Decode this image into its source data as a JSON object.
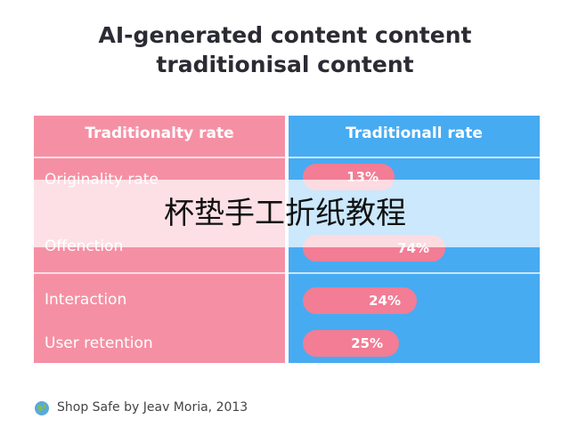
{
  "title": [
    "AI-generated content content",
    "traditionisal content"
  ],
  "table": {
    "headers": [
      "Traditionalty rate",
      "Traditionall rate"
    ],
    "rows": [
      [
        "Originality rate",
        "13%"
      ],
      [
        "Offenction",
        "74%"
      ],
      [
        "Interaction",
        "24%"
      ],
      [
        "User retention",
        "25%"
      ]
    ]
  },
  "overlay": "杯垫手工折纸教程",
  "footer": "Shop Safe by Jeav Moria, 2013"
}
